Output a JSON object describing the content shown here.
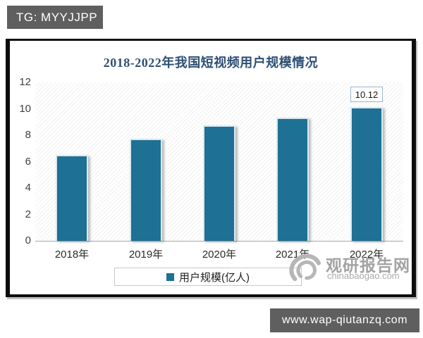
{
  "badges": {
    "telegram": "TG: MYYJJPP",
    "website": "www.wap-qiutanzq.com"
  },
  "chart_data": {
    "type": "bar",
    "title": "2018-2022年我国短视频用户规模情况",
    "categories": [
      "2018年",
      "2019年",
      "2020年",
      "2021年",
      "2022年"
    ],
    "series": [
      {
        "name": "用户规模(亿人)",
        "values": [
          6.48,
          7.73,
          8.73,
          9.34,
          10.12
        ]
      }
    ],
    "data_labels": {
      "2022年": "10.12"
    },
    "ylim": [
      0,
      12
    ],
    "yticks": [
      0,
      2,
      4,
      6,
      8,
      10,
      12
    ],
    "xlabel": "",
    "ylabel": "",
    "grid": false,
    "legend_position": "bottom",
    "legend_label": "用户规模(亿人)",
    "bar_color": "#1e7094",
    "title_color": "#2d5074"
  },
  "watermark": {
    "site_name": "观研报告网",
    "site_url": "chinabaogao.com"
  }
}
